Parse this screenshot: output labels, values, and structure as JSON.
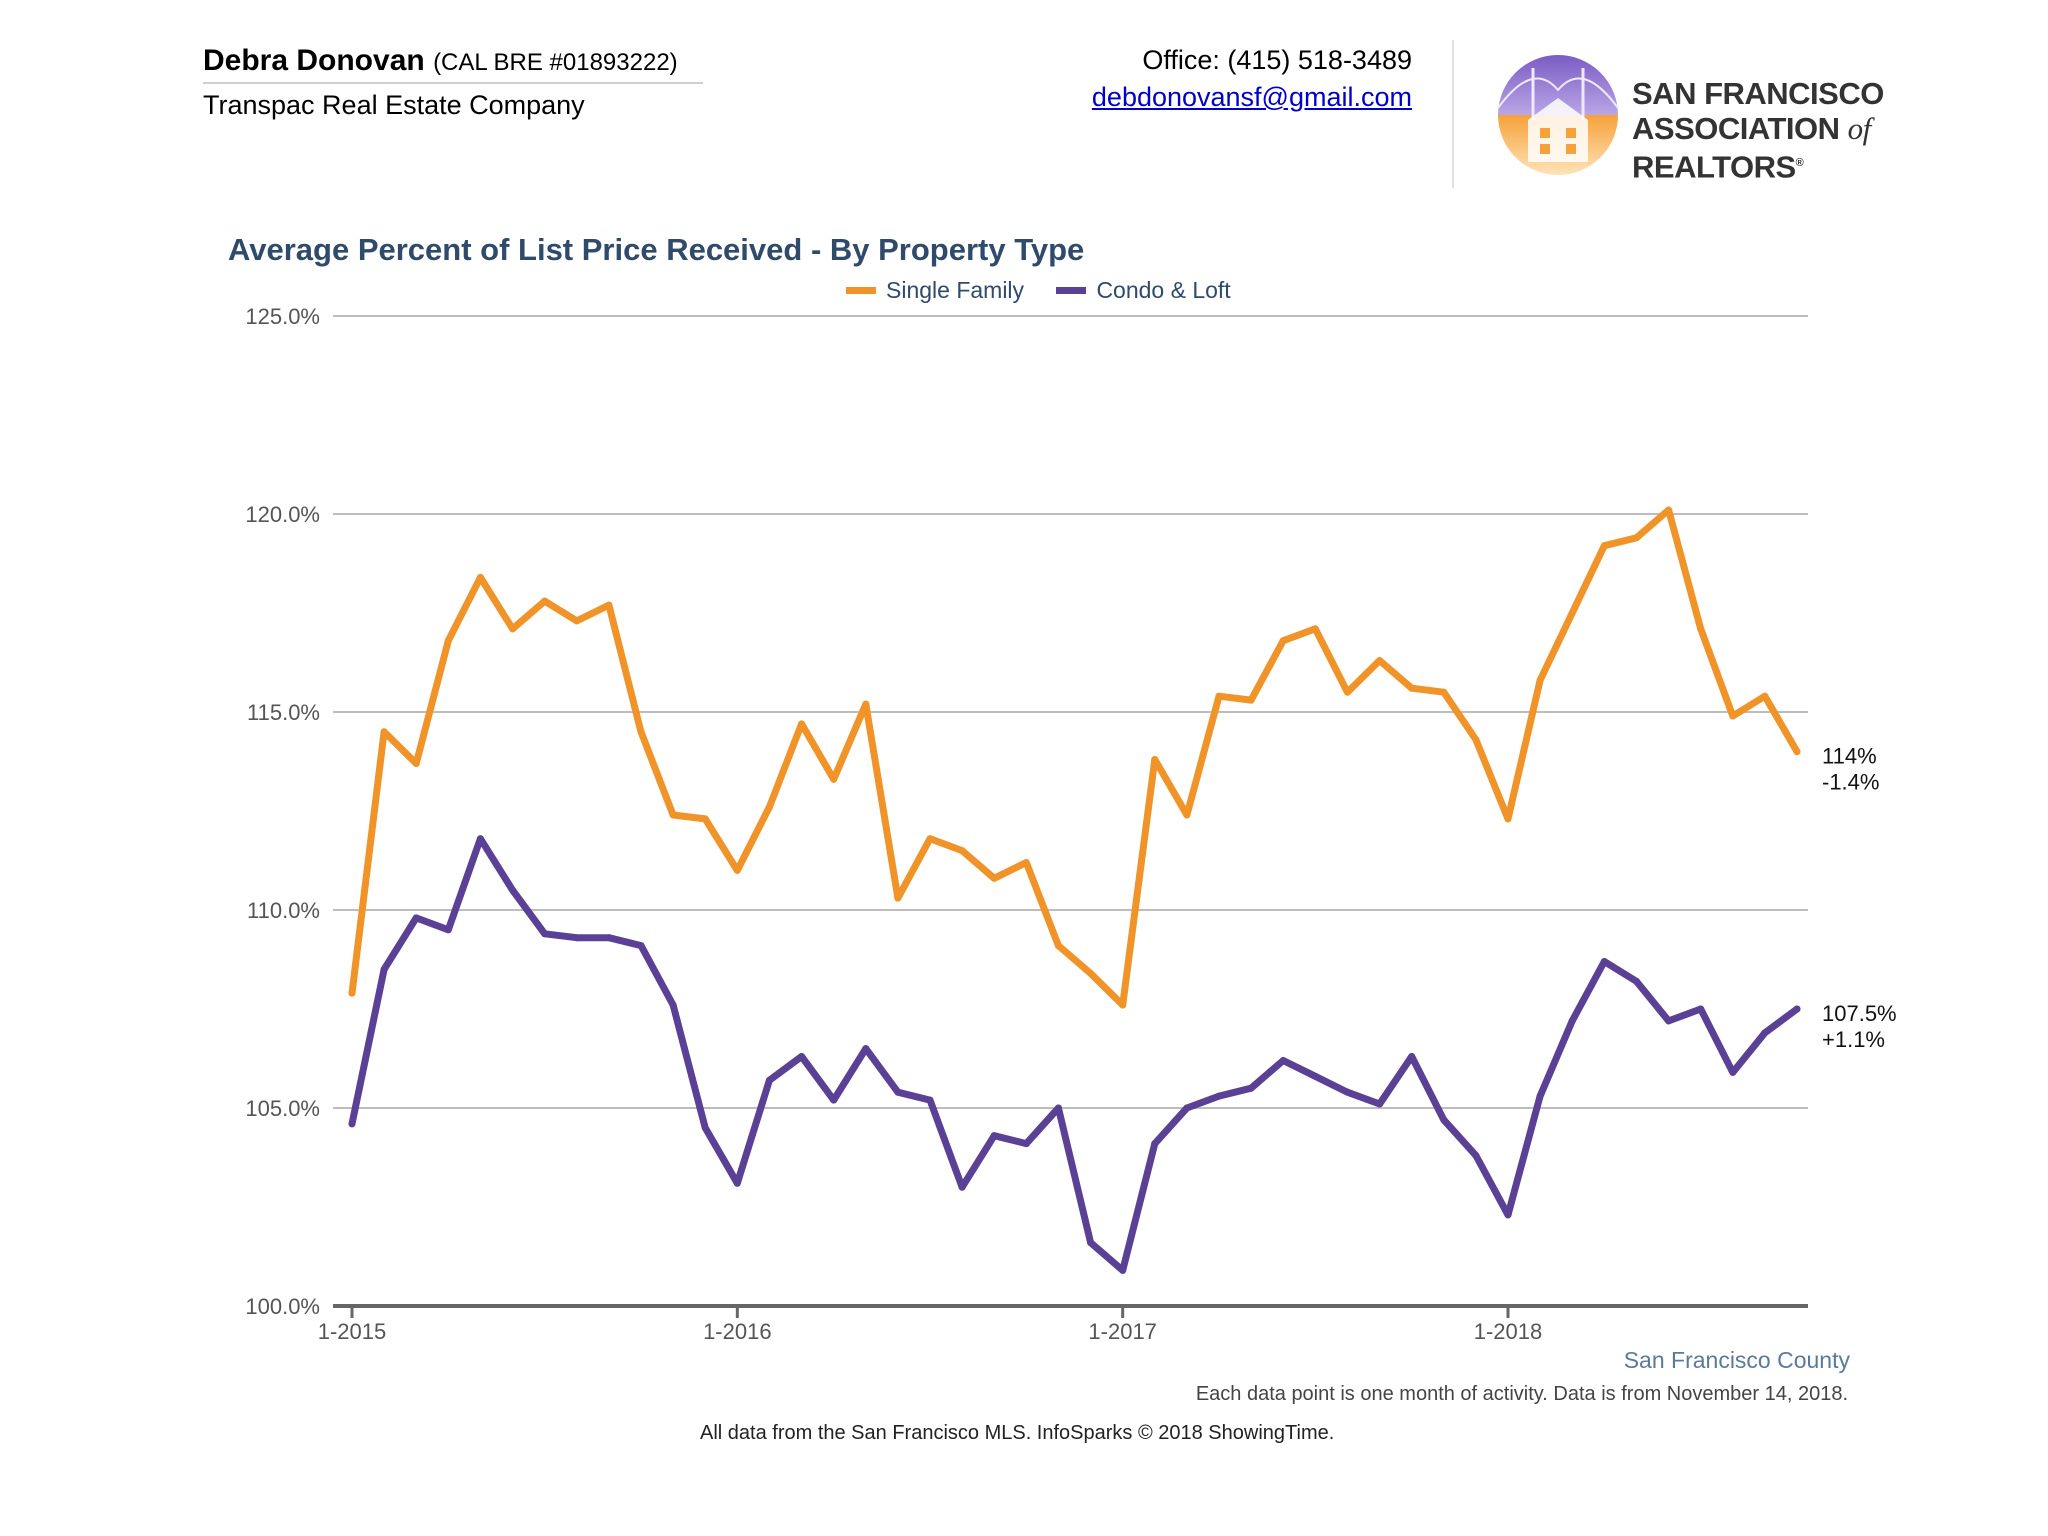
{
  "header": {
    "agent_name": "Debra Donovan",
    "license": "(CAL BRE #01893222)",
    "company": "Transpac Real Estate Company",
    "office": "Office: (415) 518-3489",
    "email": "debdonovansf@gmail.com",
    "logo_line1": "SAN FRANCISCO",
    "logo_line2_a": "ASSOCIATION",
    "logo_line2_of": "of",
    "logo_line2_b": "REALTORS",
    "logo_reg": "®"
  },
  "footer": {
    "region": "San Francisco County",
    "note": "Each data point is one month of activity. Data is from November 14, 2018.",
    "source": "All data from the San Francisco MLS. InfoSparks © 2018 ShowingTime."
  },
  "colors": {
    "single_family": "#f0942a",
    "condo_loft": "#5a4196",
    "title": "#2f4a6b",
    "grid": "#bdbdbd"
  },
  "chart_data": {
    "type": "line",
    "title": "Average Percent of List Price Received - By Property Type",
    "ylim": [
      100,
      125
    ],
    "yticks": [
      100,
      105,
      110,
      115,
      120,
      125
    ],
    "ytick_labels": [
      "100.0%",
      "105.0%",
      "110.0%",
      "115.0%",
      "120.0%",
      "125.0%"
    ],
    "x_start": "2015-01",
    "x_end": "2018-10",
    "xtick_labels": [
      "1-2015",
      "1-2016",
      "1-2017",
      "1-2018"
    ],
    "grid": true,
    "legend": "top",
    "x": [
      "2015-01",
      "2015-02",
      "2015-03",
      "2015-04",
      "2015-05",
      "2015-06",
      "2015-07",
      "2015-08",
      "2015-09",
      "2015-10",
      "2015-11",
      "2015-12",
      "2016-01",
      "2016-02",
      "2016-03",
      "2016-04",
      "2016-05",
      "2016-06",
      "2016-07",
      "2016-08",
      "2016-09",
      "2016-10",
      "2016-11",
      "2016-12",
      "2017-01",
      "2017-02",
      "2017-03",
      "2017-04",
      "2017-05",
      "2017-06",
      "2017-07",
      "2017-08",
      "2017-09",
      "2017-10",
      "2017-11",
      "2017-12",
      "2018-01",
      "2018-02",
      "2018-03",
      "2018-04",
      "2018-05",
      "2018-06",
      "2018-07",
      "2018-08",
      "2018-09",
      "2018-10"
    ],
    "series": [
      {
        "name": "Single Family",
        "values": [
          107.9,
          114.5,
          113.7,
          116.8,
          118.4,
          117.1,
          117.8,
          117.3,
          117.7,
          114.5,
          112.4,
          112.3,
          111.0,
          112.6,
          114.7,
          113.3,
          115.2,
          110.3,
          111.8,
          111.5,
          110.8,
          111.2,
          109.1,
          108.4,
          107.6,
          113.8,
          112.4,
          115.4,
          115.3,
          116.8,
          117.1,
          115.5,
          116.3,
          115.6,
          115.5,
          114.3,
          112.3,
          115.8,
          117.5,
          119.2,
          119.4,
          120.1,
          117.1,
          114.9,
          115.4,
          114.0
        ],
        "end_label_value": "114%",
        "end_label_change": "-1.4%"
      },
      {
        "name": "Condo & Loft",
        "values": [
          104.6,
          108.5,
          109.8,
          109.5,
          111.8,
          110.5,
          109.4,
          109.3,
          109.3,
          109.1,
          107.6,
          104.5,
          103.1,
          105.7,
          106.3,
          105.2,
          106.5,
          105.4,
          105.2,
          103.0,
          104.3,
          104.1,
          105.0,
          101.6,
          100.9,
          104.1,
          105.0,
          105.3,
          105.5,
          106.2,
          105.8,
          105.4,
          105.1,
          106.3,
          104.7,
          103.8,
          102.3,
          105.3,
          107.2,
          108.7,
          108.2,
          107.2,
          107.5,
          105.9,
          106.9,
          107.5
        ],
        "end_label_value": "107.5%",
        "end_label_change": "+1.1%"
      }
    ]
  }
}
